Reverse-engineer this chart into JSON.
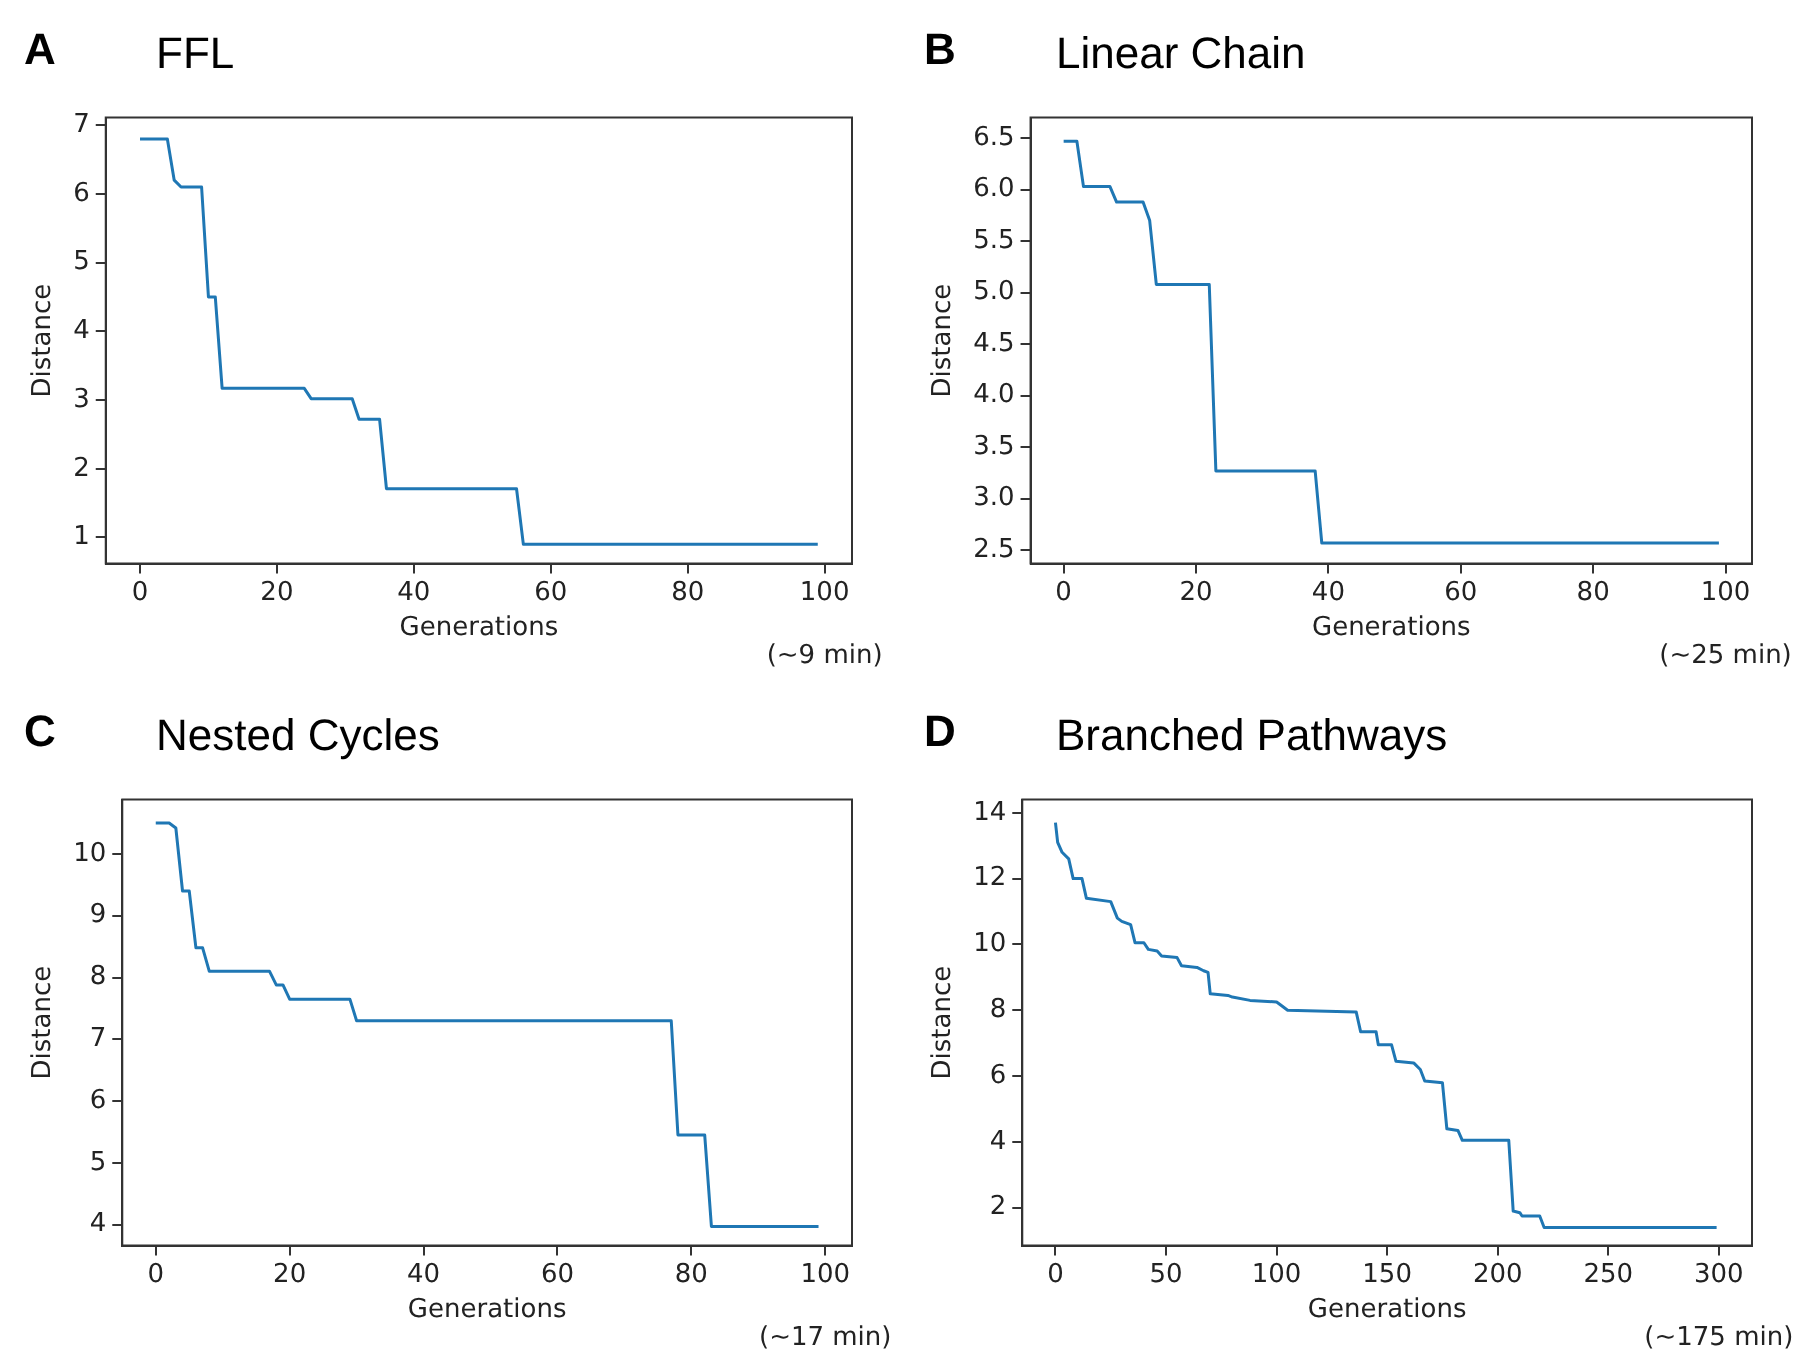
{
  "chart_data": [
    {
      "type": "line",
      "title": "FFL",
      "xlabel": "Generations",
      "ylabel": "Distance",
      "annotations": [
        "A",
        "(~9 min)"
      ],
      "color": "#1f77b4",
      "grid": false,
      "legend": false,
      "xlim": [
        -5,
        104
      ],
      "xticks": [
        0,
        20,
        40,
        60,
        80,
        100
      ],
      "ylim": [
        0.62,
        7.11
      ],
      "yticks": [
        1,
        2,
        3,
        4,
        5,
        6,
        7
      ],
      "x": [
        0,
        4,
        5,
        6,
        9,
        10,
        11,
        12,
        24,
        25,
        31,
        32,
        35,
        36,
        55,
        56,
        99
      ],
      "values": [
        6.8,
        6.8,
        6.2,
        6.1,
        6.1,
        4.5,
        4.5,
        3.17,
        3.17,
        3.02,
        3.02,
        2.72,
        2.72,
        1.71,
        1.71,
        0.9,
        0.9
      ]
    },
    {
      "type": "line",
      "title": "Linear Chain",
      "xlabel": "Generations",
      "ylabel": "Distance",
      "annotations": [
        "B",
        "(~25 min)"
      ],
      "color": "#1f77b4",
      "grid": false,
      "legend": false,
      "xlim": [
        -5,
        104
      ],
      "xticks": [
        0,
        20,
        40,
        60,
        80,
        100
      ],
      "ylim": [
        2.37,
        6.7
      ],
      "yticks": [
        {
          "value": 2.5,
          "label": "2.5"
        },
        {
          "value": 3,
          "label": "3.0"
        },
        {
          "value": 3.5,
          "label": "3.5"
        },
        {
          "value": 4,
          "label": "4.0"
        },
        {
          "value": 4.5,
          "label": "4.5"
        },
        {
          "value": 5,
          "label": "5.0"
        },
        {
          "value": 5.5,
          "label": "5.5"
        },
        {
          "value": 6,
          "label": "6.0"
        },
        {
          "value": 6.5,
          "label": "6.5"
        }
      ],
      "x": [
        0,
        2,
        3,
        7,
        8,
        12,
        13,
        14,
        22,
        23,
        38,
        39,
        99
      ],
      "values": [
        6.47,
        6.47,
        6.03,
        6.03,
        5.88,
        5.88,
        5.7,
        5.08,
        5.08,
        3.27,
        3.27,
        2.57,
        2.57
      ]
    },
    {
      "type": "line",
      "title": "Nested Cycles",
      "xlabel": "Generations",
      "ylabel": "Distance",
      "annotations": [
        "C",
        "(~17 min)"
      ],
      "color": "#1f77b4",
      "grid": false,
      "legend": false,
      "xlim": [
        -5,
        104
      ],
      "xticks": [
        0,
        20,
        40,
        60,
        80,
        100
      ],
      "ylim": [
        3.66,
        10.88
      ],
      "yticks": [
        4,
        5,
        6,
        7,
        8,
        9,
        10
      ],
      "x": [
        0,
        2,
        3,
        4,
        5,
        6,
        7,
        8,
        17,
        18,
        19,
        20,
        29,
        30,
        77,
        78,
        82,
        83,
        99
      ],
      "values": [
        10.5,
        10.5,
        10.42,
        9.4,
        9.4,
        8.48,
        8.48,
        8.1,
        8.1,
        7.88,
        7.88,
        7.65,
        7.65,
        7.3,
        7.3,
        5.45,
        5.45,
        3.97,
        3.97
      ]
    },
    {
      "type": "line",
      "title": "Branched Pathways",
      "xlabel": "Generations",
      "ylabel": "Distance",
      "annotations": [
        "D",
        "(~175 min)"
      ],
      "color": "#1f77b4",
      "grid": false,
      "legend": false,
      "xlim": [
        -15,
        315
      ],
      "xticks": [
        0,
        50,
        100,
        150,
        200,
        250,
        300
      ],
      "ylim": [
        0.85,
        14.4
      ],
      "yticks": [
        2,
        4,
        6,
        8,
        10,
        12,
        14
      ],
      "x": [
        0,
        1,
        3,
        6,
        8,
        12,
        14,
        25,
        28,
        30,
        34,
        36,
        40,
        42,
        46,
        48,
        55,
        57,
        64,
        67,
        69,
        70,
        78,
        80,
        88,
        100,
        102,
        105,
        136,
        138,
        145,
        146,
        152,
        154,
        162,
        165,
        167,
        175,
        177,
        182,
        184,
        205,
        207,
        210,
        211,
        219,
        221,
        299
      ],
      "values": [
        13.7,
        13.1,
        12.8,
        12.6,
        12.0,
        12.0,
        11.4,
        11.3,
        10.8,
        10.7,
        10.6,
        10.05,
        10.05,
        9.85,
        9.8,
        9.65,
        9.6,
        9.35,
        9.3,
        9.2,
        9.15,
        8.5,
        8.45,
        8.4,
        8.3,
        8.25,
        8.15,
        8.0,
        7.95,
        7.35,
        7.35,
        6.95,
        6.95,
        6.45,
        6.4,
        6.2,
        5.85,
        5.8,
        4.4,
        4.35,
        4.05,
        4.05,
        1.9,
        1.85,
        1.75,
        1.75,
        1.4,
        1.4
      ]
    }
  ]
}
